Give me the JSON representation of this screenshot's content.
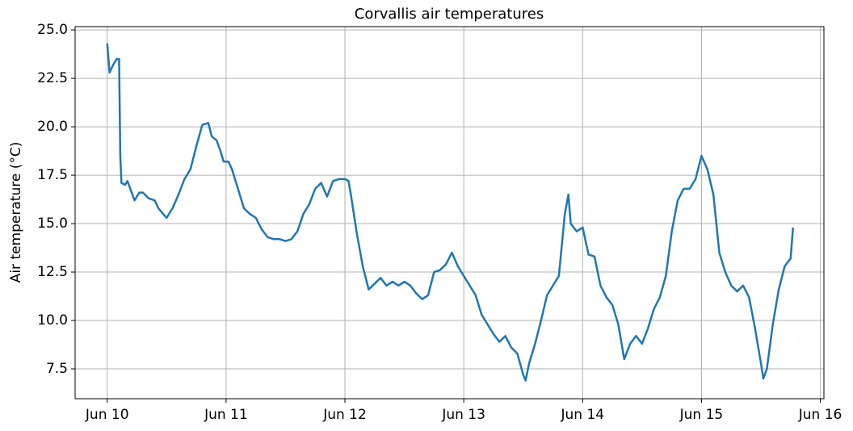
{
  "chart_data": {
    "type": "line",
    "title": "Corvallis air temperatures",
    "y_label": "Air temperature (°C)",
    "x": [
      10.0,
      10.02,
      10.05,
      10.08,
      10.1,
      10.11,
      10.12,
      10.15,
      10.17,
      10.2,
      10.23,
      10.27,
      10.3,
      10.35,
      10.4,
      10.43,
      10.47,
      10.5,
      10.55,
      10.6,
      10.65,
      10.7,
      10.75,
      10.8,
      10.85,
      10.88,
      10.92,
      10.95,
      10.98,
      11.02,
      11.05,
      11.1,
      11.15,
      11.2,
      11.25,
      11.3,
      11.35,
      11.4,
      11.45,
      11.5,
      11.55,
      11.6,
      11.65,
      11.7,
      11.75,
      11.8,
      11.85,
      11.9,
      11.95,
      12.0,
      12.03,
      12.05,
      12.1,
      12.15,
      12.2,
      12.25,
      12.3,
      12.35,
      12.4,
      12.45,
      12.5,
      12.55,
      12.6,
      12.65,
      12.7,
      12.75,
      12.8,
      12.85,
      12.9,
      12.95,
      13.0,
      13.05,
      13.1,
      13.15,
      13.2,
      13.25,
      13.3,
      13.35,
      13.4,
      13.45,
      13.5,
      13.52,
      13.55,
      13.6,
      13.65,
      13.7,
      13.75,
      13.8,
      13.85,
      13.88,
      13.9,
      13.95,
      14.0,
      14.05,
      14.1,
      14.15,
      14.2,
      14.25,
      14.3,
      14.35,
      14.4,
      14.45,
      14.5,
      14.55,
      14.6,
      14.65,
      14.7,
      14.75,
      14.8,
      14.85,
      14.9,
      14.95,
      15.0,
      15.05,
      15.1,
      15.15,
      15.2,
      15.25,
      15.3,
      15.35,
      15.4,
      15.45,
      15.5,
      15.52,
      15.55,
      15.6,
      15.65,
      15.7,
      15.75,
      15.77
    ],
    "values": [
      24.3,
      22.8,
      23.2,
      23.5,
      23.5,
      18.5,
      17.1,
      17.0,
      17.2,
      16.7,
      16.2,
      16.6,
      16.6,
      16.3,
      16.2,
      15.8,
      15.5,
      15.3,
      15.8,
      16.5,
      17.3,
      17.8,
      19.0,
      20.1,
      20.2,
      19.5,
      19.3,
      18.8,
      18.2,
      18.2,
      17.8,
      16.8,
      15.8,
      15.5,
      15.3,
      14.7,
      14.3,
      14.2,
      14.2,
      14.1,
      14.2,
      14.6,
      15.5,
      16.0,
      16.8,
      17.1,
      16.4,
      17.2,
      17.3,
      17.3,
      17.2,
      16.5,
      14.5,
      12.8,
      11.6,
      11.9,
      12.2,
      11.8,
      12.0,
      11.8,
      12.0,
      11.8,
      11.4,
      11.1,
      11.3,
      12.5,
      12.6,
      12.9,
      13.5,
      12.8,
      12.3,
      11.8,
      11.3,
      10.3,
      9.8,
      9.3,
      8.9,
      9.2,
      8.6,
      8.3,
      7.2,
      6.9,
      7.8,
      8.8,
      10.0,
      11.3,
      11.8,
      12.3,
      15.5,
      16.5,
      15.0,
      14.6,
      14.8,
      13.4,
      13.3,
      11.8,
      11.2,
      10.8,
      9.8,
      8.0,
      8.8,
      9.2,
      8.8,
      9.6,
      10.6,
      11.2,
      12.3,
      14.6,
      16.2,
      16.8,
      16.8,
      17.3,
      18.5,
      17.8,
      16.5,
      13.5,
      12.5,
      11.8,
      11.5,
      11.8,
      11.2,
      9.6,
      7.8,
      7.0,
      7.5,
      9.8,
      11.6,
      12.8,
      13.2,
      14.8
    ],
    "color": "#1f77b4",
    "xlim": [
      9.73,
      16.03
    ],
    "xticks": [
      {
        "value": 10,
        "label": "Jun 10"
      },
      {
        "value": 11,
        "label": "Jun 11"
      },
      {
        "value": 12,
        "label": "Jun 12"
      },
      {
        "value": 13,
        "label": "Jun 13"
      },
      {
        "value": 14,
        "label": "Jun 14"
      },
      {
        "value": 15,
        "label": "Jun 15"
      },
      {
        "value": 16,
        "label": "Jun 16"
      }
    ],
    "ylim": [
      5.96,
      25.17
    ],
    "yticks": [
      7.5,
      {
        "value": 10,
        "label": "10.0"
      },
      12.5,
      {
        "value": 15,
        "label": "15.0"
      },
      17.5,
      {
        "value": 20,
        "label": "20.0"
      },
      22.5,
      {
        "value": 25,
        "label": "25.0"
      }
    ],
    "grid": true
  }
}
